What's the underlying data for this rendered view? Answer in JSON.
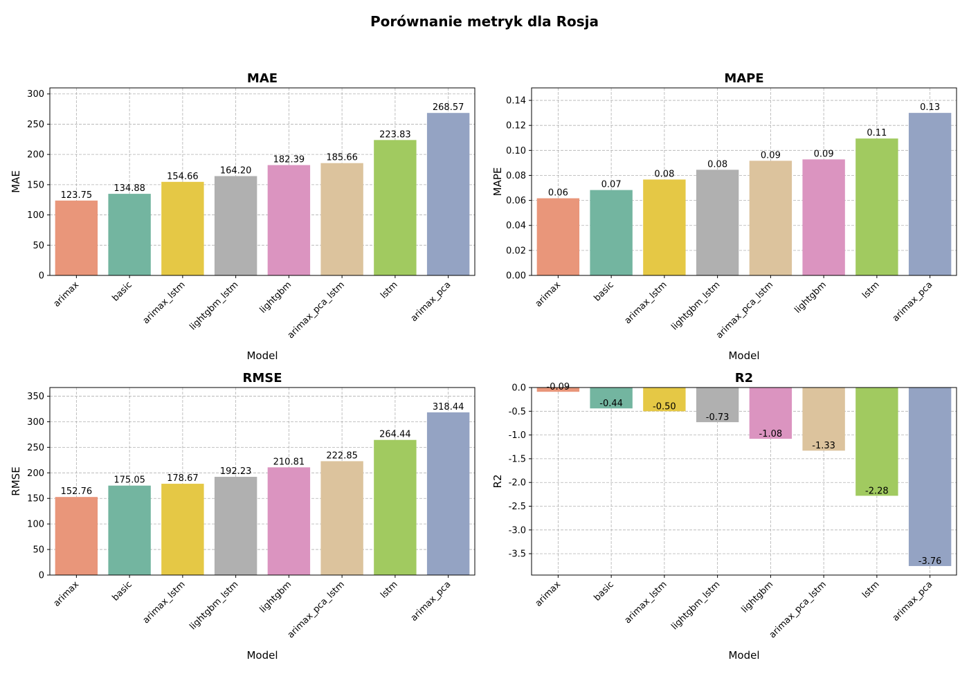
{
  "title": "Porównanie metryk dla Rosja",
  "colors": {
    "arimax": "#e9967a",
    "basic": "#73b5a0",
    "arimax_lstm": "#e5c845",
    "lightgbm_lstm": "#b0b0b0",
    "lightgbm": "#db94c0",
    "arimax_pca_lstm": "#dcc39d",
    "lstm": "#a1ca60",
    "arimax_pca": "#94a3c3"
  },
  "chart_data": [
    {
      "type": "bar",
      "title": "MAE",
      "xlabel": "Model",
      "ylabel": "MAE",
      "categories": [
        "arimax",
        "basic",
        "arimax_lstm",
        "lightgbm_lstm",
        "lightgbm",
        "arimax_pca_lstm",
        "lstm",
        "arimax_pca"
      ],
      "values": [
        123.75,
        134.88,
        154.66,
        164.2,
        182.39,
        185.66,
        223.83,
        268.57
      ],
      "labels": [
        "123.75",
        "134.88",
        "154.66",
        "164.20",
        "182.39",
        "185.66",
        "223.83",
        "268.57"
      ],
      "ylim": [
        0,
        310
      ],
      "yticks": [
        0,
        50,
        100,
        150,
        200,
        250,
        300
      ],
      "ytick_labels": [
        "0",
        "50",
        "100",
        "150",
        "200",
        "250",
        "300"
      ],
      "grid": true
    },
    {
      "type": "bar",
      "title": "MAPE",
      "xlabel": "Model",
      "ylabel": "MAPE",
      "categories": [
        "arimax",
        "basic",
        "arimax_lstm",
        "lightgbm_lstm",
        "arimax_pca_lstm",
        "lightgbm",
        "lstm",
        "arimax_pca"
      ],
      "values": [
        0.0617,
        0.0683,
        0.0767,
        0.0845,
        0.0917,
        0.0928,
        0.1095,
        0.13
      ],
      "labels": [
        "0.06",
        "0.07",
        "0.08",
        "0.08",
        "0.09",
        "0.09",
        "0.11",
        "0.13"
      ],
      "ylim": [
        0,
        0.15
      ],
      "yticks": [
        0,
        0.02,
        0.04,
        0.06,
        0.08,
        0.1,
        0.12,
        0.14
      ],
      "ytick_labels": [
        "0.00",
        "0.02",
        "0.04",
        "0.06",
        "0.08",
        "0.10",
        "0.12",
        "0.14"
      ],
      "grid": true
    },
    {
      "type": "bar",
      "title": "RMSE",
      "xlabel": "Model",
      "ylabel": "RMSE",
      "categories": [
        "arimax",
        "basic",
        "arimax_lstm",
        "lightgbm_lstm",
        "lightgbm",
        "arimax_pca_lstm",
        "lstm",
        "arimax_pca"
      ],
      "values": [
        152.76,
        175.05,
        178.67,
        192.23,
        210.81,
        222.85,
        264.44,
        318.44
      ],
      "labels": [
        "152.76",
        "175.05",
        "178.67",
        "192.23",
        "210.81",
        "222.85",
        "264.44",
        "318.44"
      ],
      "ylim": [
        0,
        367
      ],
      "yticks": [
        0,
        50,
        100,
        150,
        200,
        250,
        300,
        350
      ],
      "ytick_labels": [
        "0",
        "50",
        "100",
        "150",
        "200",
        "250",
        "300",
        "350"
      ],
      "grid": true
    },
    {
      "type": "bar",
      "title": "R2",
      "xlabel": "Model",
      "ylabel": "R2",
      "categories": [
        "arimax",
        "basic",
        "arimax_lstm",
        "lightgbm_lstm",
        "lightgbm",
        "arimax_pca_lstm",
        "lstm",
        "arimax_pca"
      ],
      "values": [
        -0.09,
        -0.44,
        -0.5,
        -0.73,
        -1.08,
        -1.33,
        -2.28,
        -3.76
      ],
      "labels": [
        "-0.09",
        "-0.44",
        "-0.50",
        "-0.73",
        "-1.08",
        "-1.33",
        "-2.28",
        "-3.76"
      ],
      "ylim": [
        -3.95,
        0
      ],
      "yticks": [
        0,
        -0.5,
        -1,
        -1.5,
        -2,
        -2.5,
        -3,
        -3.5
      ],
      "ytick_labels": [
        "0.0",
        "-0.5",
        "-1.0",
        "-1.5",
        "-2.0",
        "-2.5",
        "-3.0",
        "-3.5"
      ],
      "grid": true
    }
  ]
}
